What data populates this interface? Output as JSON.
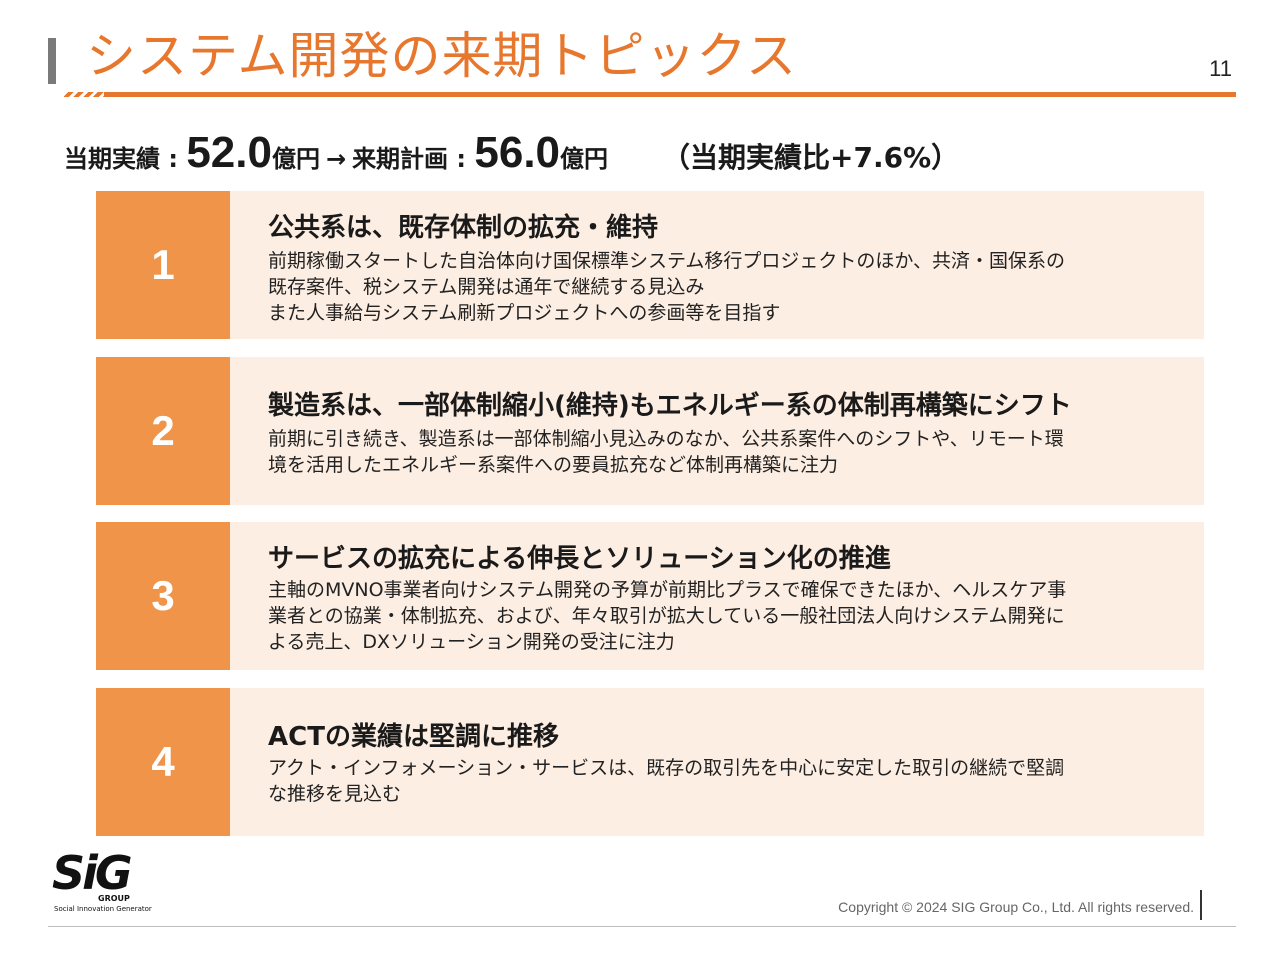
{
  "header": {
    "title": "システム開発の来期トピックス",
    "page_number": "11"
  },
  "summary": {
    "current_label": "当期実績 : ",
    "current_value": "52.0",
    "current_unit": "億円",
    "arrow": "→",
    "plan_label": "来期計画 : ",
    "plan_value": "56.0",
    "plan_unit": "億円",
    "ratio": "（当期実績比+7.6%）"
  },
  "topics": [
    {
      "number": "1",
      "heading": "公共系は、既存体制の拡充・維持",
      "lines": [
        "前期稼働スタートした自治体向け国保標準システム移行プロジェクトのほか、共済・国保系の",
        "既存案件、税システム開発は通年で継続する見込み",
        "また人事給与システム刷新プロジェクトへの参画等を目指す"
      ]
    },
    {
      "number": "2",
      "heading": "製造系は、一部体制縮小(維持)もエネルギー系の体制再構築にシフト",
      "lines": [
        "前期に引き続き、製造系は一部体制縮小見込みのなか、公共系案件へのシフトや、リモート環",
        "境を活用したエネルギー系案件への要員拡充など体制再構築に注力"
      ]
    },
    {
      "number": "3",
      "heading": "サービスの拡充による伸長とソリューション化の推進",
      "lines": [
        "主軸のMVNO事業者向けシステム開発の予算が前期比プラスで確保できたほか、ヘルスケア事",
        "業者との協業・体制拡充、および、年々取引が拡大している一般社団法人向けシステム開発に",
        "よる売上、DXソリューション開発の受注に注力"
      ]
    },
    {
      "number": "4",
      "heading": "ACTの業績は堅調に推移",
      "lines": [
        "アクト・インフォメーション・サービスは、既存の取引先を中心に安定した取引の継続で堅調",
        "な推移を見込む"
      ]
    }
  ],
  "footer": {
    "logo_text": "SiG",
    "logo_group": "GROUP",
    "logo_tagline": "Social Innovation Generator",
    "copyright": "Copyright © 2024  SIG Group Co., Ltd. All rights reserved."
  },
  "colors": {
    "accent": "#e8772e",
    "number_block": "#ef9449",
    "card_bg": "#fdeee3"
  }
}
